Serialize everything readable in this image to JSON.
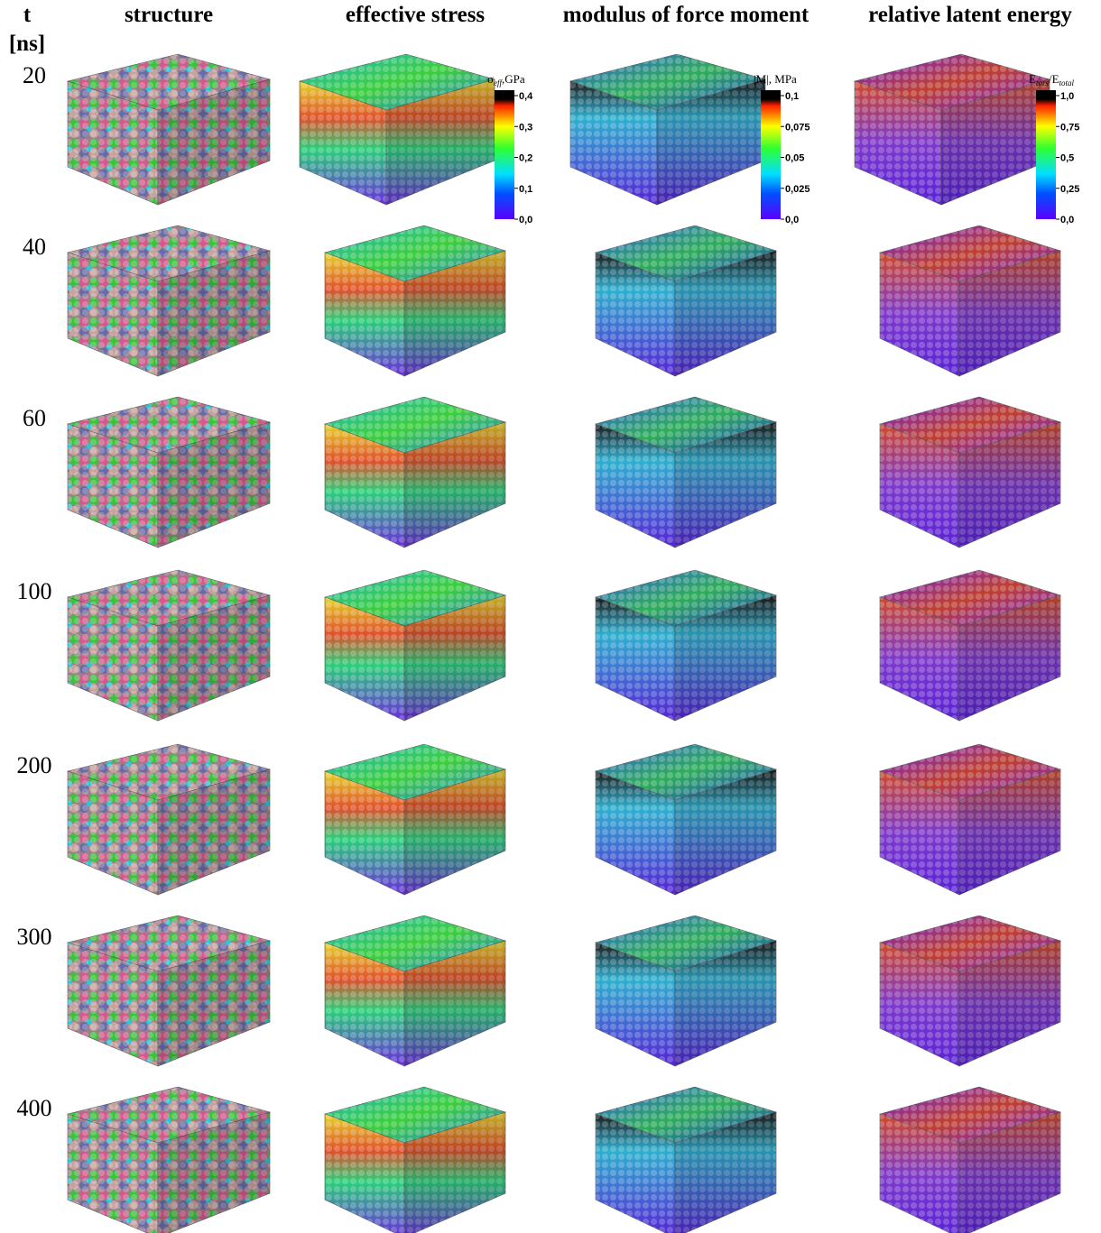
{
  "header": {
    "time_label": "t",
    "time_unit": "[ns]",
    "columns": [
      "structure",
      "effective stress",
      "modulus of force moment",
      "relative latent energy"
    ]
  },
  "rows": [
    "20",
    "40",
    "60",
    "100",
    "200",
    "300",
    "400"
  ],
  "colorbars": [
    {
      "title": [
        {
          "text": "σ"
        },
        {
          "text": "eff",
          "sub": true
        },
        {
          "text": ",GPa"
        }
      ],
      "ticks": [
        "0,4",
        "0,3",
        "0,2",
        "0,1",
        "0,0"
      ]
    },
    {
      "title": [
        {
          "text": "|M|, MPa"
        }
      ],
      "ticks": [
        "0,1",
        "0,075",
        "0,05",
        "0,025",
        "0,0"
      ]
    },
    {
      "title": [
        {
          "text": "E"
        },
        {
          "text": "tors",
          "sub": true
        },
        {
          "text": "/E"
        },
        {
          "text": "total",
          "sub": true
        }
      ],
      "ticks": [
        "1,0",
        "0,75",
        "0,5",
        "0,25",
        "0,0"
      ]
    }
  ]
}
